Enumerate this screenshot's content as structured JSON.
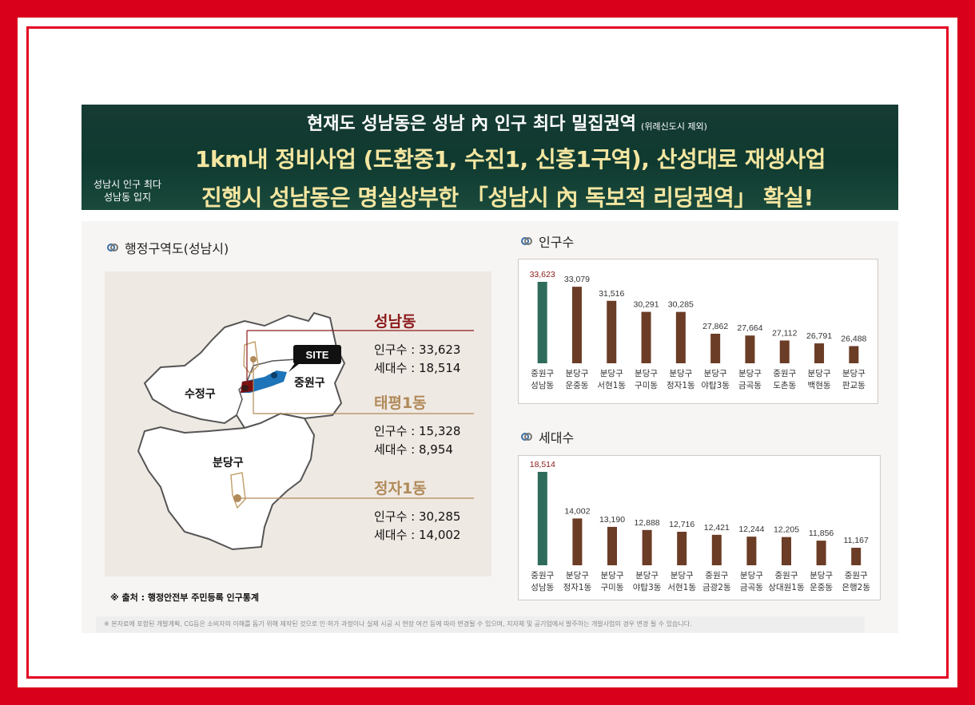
{
  "banner": {
    "side_line1": "성남시 인구 최다",
    "side_line2": "성남동 입지",
    "line1": "현재도 성남동은 성남 內 인구 최다 밀집권역",
    "line1_note": "(위례신도시 제외)",
    "line2": "1km내 정비사업 (도환중1, 수진1, 신흥1구역), 산성대로 재생사업",
    "line3": "진행시 성남동은 명실상부한 「성남시 內 독보적 리딩권역」 확실!"
  },
  "map": {
    "title": "행정구역도(성남시)",
    "site_label": "SITE",
    "district_labels": {
      "sujeong": "수정구",
      "jungwon": "중원구",
      "bundang": "분당구"
    },
    "areas": [
      {
        "name": "성남동",
        "pop_line": "인구수 : 33,623",
        "hh_line": "세대수 : 18,514",
        "color": "#8b1a1a"
      },
      {
        "name": "태평1동",
        "pop_line": "인구수 : 15,328",
        "hh_line": "세대수 : 8,954",
        "color": "#b08a5a"
      },
      {
        "name": "정자1동",
        "pop_line": "인구수 : 30,285",
        "hh_line": "세대수 : 14,002",
        "color": "#b08a5a"
      }
    ],
    "source": "※ 출처 : 행정안전부 주민등록 인구통계"
  },
  "disclaimer": "※ 본자료에 포함된 개발계획, CG등은 소비자의 이해를 돕기 위해 제작된 것으로 인·허가 과정이나 실제 시공 시 현장 여건 등에 따라 변경될 수 있으며, 지자체 및 공기업에서 발주하는 개발사업의 경우 변경 될 수 있습니다.",
  "colors": {
    "highlight_bar": "#2e6b5b",
    "bar": "#6b3c26",
    "highlight_label": "#8b1a1a",
    "site": "#1e74b8"
  },
  "chart_data": [
    {
      "type": "bar",
      "title": "인구수",
      "categories": [
        "중원구 성남동",
        "분당구 운중동",
        "분당구 서현1동",
        "분당구 구미동",
        "분당구 정자1동",
        "분당구 야탑3동",
        "분당구 금곡동",
        "중원구 도촌동",
        "분당구 백현동",
        "분당구 판교동"
      ],
      "category_lines": [
        [
          "중원구",
          "성남동"
        ],
        [
          "분당구",
          "운중동"
        ],
        [
          "분당구",
          "서현1동"
        ],
        [
          "분당구",
          "구미동"
        ],
        [
          "분당구",
          "정자1동"
        ],
        [
          "분당구",
          "야탑3동"
        ],
        [
          "분당구",
          "금곡동"
        ],
        [
          "중원구",
          "도촌동"
        ],
        [
          "분당구",
          "백현동"
        ],
        [
          "분당구",
          "판교동"
        ]
      ],
      "values": [
        33623,
        33079,
        31516,
        30291,
        30285,
        27862,
        27664,
        27112,
        26791,
        26488
      ],
      "value_labels": [
        "33,623",
        "33,079",
        "31,516",
        "30,291",
        "30,285",
        "27,862",
        "27,664",
        "27,112",
        "26,791",
        "26,488"
      ],
      "highlight_index": 0
    },
    {
      "type": "bar",
      "title": "세대수",
      "categories": [
        "중원구 성남동",
        "분당구 정자1동",
        "분당구 구미동",
        "분당구 야탑3동",
        "분당구 서현1동",
        "중원구 금광2동",
        "분당구 금곡동",
        "중원구 상대원1동",
        "분당구 운중동",
        "중원구 은행2동"
      ],
      "category_lines": [
        [
          "중원구",
          "성남동"
        ],
        [
          "분당구",
          "정자1동"
        ],
        [
          "분당구",
          "구미동"
        ],
        [
          "분당구",
          "야탑3동"
        ],
        [
          "분당구",
          "서현1동"
        ],
        [
          "중원구",
          "금광2동"
        ],
        [
          "분당구",
          "금곡동"
        ],
        [
          "중원구",
          "상대원1동"
        ],
        [
          "분당구",
          "운중동"
        ],
        [
          "중원구",
          "은행2동"
        ]
      ],
      "values": [
        18514,
        14002,
        13190,
        12888,
        12716,
        12421,
        12244,
        12205,
        11856,
        11167
      ],
      "value_labels": [
        "18,514",
        "14,002",
        "13,190",
        "12,888",
        "12,716",
        "12,421",
        "12,244",
        "12,205",
        "11,856",
        "11,167"
      ],
      "highlight_index": 0
    }
  ]
}
